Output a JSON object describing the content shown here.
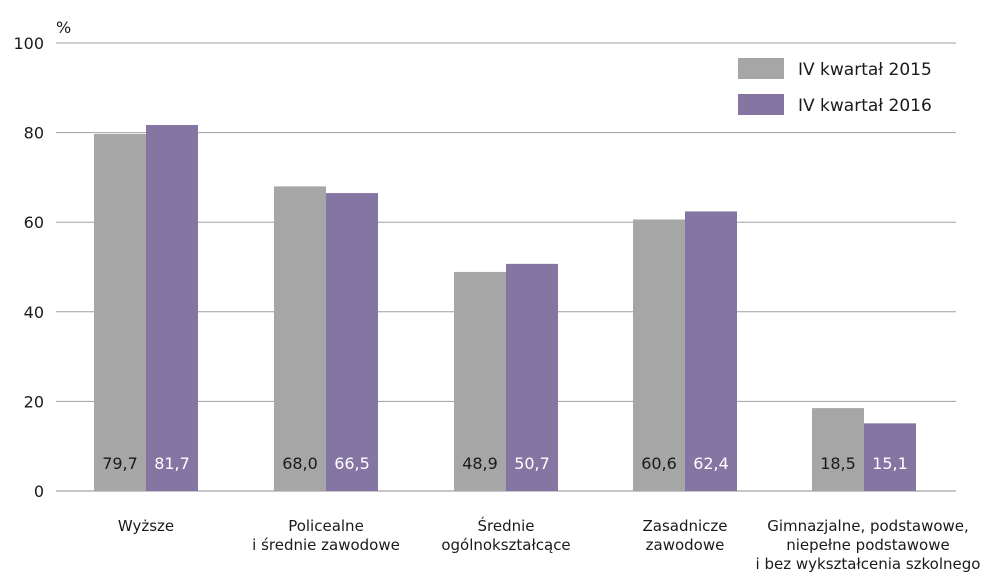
{
  "chart_data": {
    "type": "bar",
    "ylabel": "%",
    "ylim": [
      0,
      100
    ],
    "yticks": [
      0,
      20,
      40,
      60,
      80,
      100
    ],
    "grid": true,
    "legend_position": "top-right",
    "categories": [
      [
        "Wyższe"
      ],
      [
        "Policealne",
        "i średnie zawodowe"
      ],
      [
        "Średnie",
        "ogólnokształcące"
      ],
      [
        "Zasadnicze",
        "zawodowe"
      ],
      [
        "Gimnazjalne, podstawowe,",
        "niepełne podstawowe",
        "i bez wykształcenia szkolnego"
      ]
    ],
    "series": [
      {
        "name": "IV kwartał 2015",
        "color": "#a6a6a6",
        "values": [
          79.7,
          68.0,
          48.9,
          60.6,
          18.5
        ],
        "labels": [
          "79,7",
          "68,0",
          "48,9",
          "60,6",
          "18,5"
        ]
      },
      {
        "name": "IV kwartał 2016",
        "color": "#8475a3",
        "values": [
          81.7,
          66.5,
          50.7,
          62.4,
          15.1
        ],
        "labels": [
          "81,7",
          "66,5",
          "50,7",
          "62,4",
          "15,1"
        ]
      }
    ]
  }
}
